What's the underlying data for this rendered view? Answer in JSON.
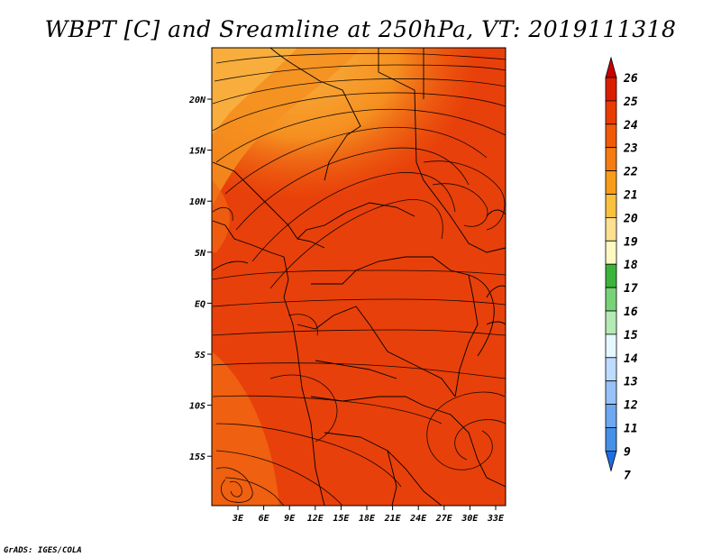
{
  "title": "WBPT [C] and Sreamline at 250hPa, VT: 2019111318",
  "credit": "GrADS: IGES/COLA",
  "map": {
    "lon_ticks": [
      "3E",
      "6E",
      "9E",
      "12E",
      "15E",
      "18E",
      "21E",
      "24E",
      "27E",
      "30E",
      "33E"
    ],
    "lat_ticks": [
      "20N",
      "15N",
      "10N",
      "5N",
      "EQ",
      "5S",
      "10S",
      "15S"
    ],
    "fill_colors": {
      "warm_core": "#e8400a",
      "mid": "#f06812",
      "north": "#f59020",
      "northwest": "#f8b040",
      "streamline": "#000000",
      "border": "#000000"
    }
  },
  "colorbar": {
    "labels": [
      "26",
      "25",
      "24",
      "23",
      "22",
      "21",
      "20",
      "19",
      "18",
      "17",
      "16",
      "15",
      "14",
      "13",
      "12",
      "11",
      "9",
      "7"
    ],
    "colors": [
      "#c80000",
      "#dc1e00",
      "#ea3c00",
      "#f25a08",
      "#f47c10",
      "#f89c1c",
      "#fac040",
      "#fde090",
      "#fff8c0",
      "#3cb43c",
      "#78d278",
      "#b4eab4",
      "#e6f8ff",
      "#bedcff",
      "#96c2f8",
      "#6ea8f0",
      "#4690e8",
      "#1e6ee0"
    ]
  }
}
